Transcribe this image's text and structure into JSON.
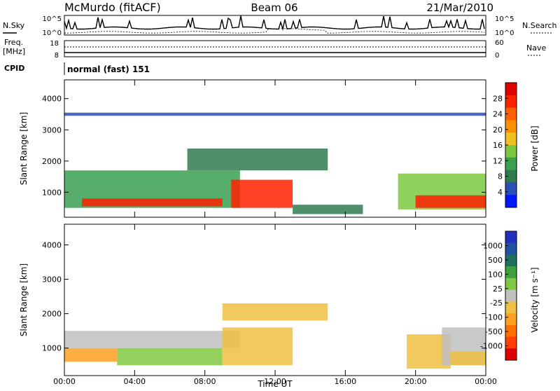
{
  "header": {
    "station": "McMurdo (fitACF)",
    "beam": "Beam 06",
    "date": "21/Mar/2010"
  },
  "strips": {
    "noise_left_label": "N.Sky",
    "noise_right_label": "N.Search",
    "noise_ticks": [
      "10^5",
      "10^0"
    ],
    "freq_label_1": "Freq.",
    "freq_label_2": "[MHz]",
    "freq_ticks": [
      "18",
      "8"
    ],
    "nave_label": "Nave",
    "nave_ticks": [
      "60",
      "0"
    ],
    "cpid_label": "CPID",
    "cpid_value": "normal (fast) 151"
  },
  "colorbars": {
    "power": {
      "label": "Power [dB]",
      "ticks": [
        "28",
        "24",
        "20",
        "16",
        "12",
        "8",
        "4"
      ],
      "colors": [
        "#0018ff",
        "#2a4fb8",
        "#2f7a4f",
        "#3aa050",
        "#7cc840",
        "#f0c020",
        "#ff9000",
        "#ff6000",
        "#ff2000",
        "#e00000"
      ]
    },
    "velocity": {
      "label": "Velocity [m s⁻¹]",
      "ticks": [
        "1000",
        "500",
        "100",
        "25",
        "-25",
        "-100",
        "-500",
        "-1000"
      ],
      "colors": [
        "#2030c0",
        "#2050a0",
        "#207060",
        "#40a040",
        "#80c840",
        "#c0c0c0",
        "#f0c040",
        "#ffa020",
        "#ff7000",
        "#ff4000",
        "#e00000"
      ]
    }
  },
  "chart_data": [
    {
      "type": "heatmap",
      "title": "",
      "ylabel": "Slant Range [km]",
      "xlabel": "",
      "ylim": [
        200,
        4600
      ],
      "x_ticks": [
        "00:00",
        "04:00",
        "08:00",
        "12:00",
        "16:00",
        "20:00",
        "00:00"
      ],
      "y_ticks": [
        "1000",
        "2000",
        "3000",
        "4000"
      ],
      "y_tick_values": [
        1000,
        2000,
        3000,
        4000
      ],
      "colorbar": "Power [dB]",
      "colorbar_range": [
        0,
        30
      ],
      "regions": [
        {
          "t0": 0.0,
          "t1": 10.0,
          "r0": 500,
          "r1": 1700,
          "value": 10
        },
        {
          "t0": 1.0,
          "t1": 9.0,
          "r0": 550,
          "r1": 800,
          "value": 26
        },
        {
          "t0": 9.5,
          "t1": 13.0,
          "r0": 500,
          "r1": 1400,
          "value": 24
        },
        {
          "t0": 19.0,
          "t1": 24.0,
          "r0": 450,
          "r1": 1600,
          "value": 14
        },
        {
          "t0": 20.0,
          "t1": 24.0,
          "r0": 500,
          "r1": 900,
          "value": 25
        },
        {
          "t0": 13.0,
          "t1": 17.0,
          "r0": 300,
          "r1": 600,
          "value": 8
        },
        {
          "t0": 7.0,
          "t1": 15.0,
          "r0": 1700,
          "r1": 2400,
          "value": 8
        },
        {
          "t0": 0.0,
          "t1": 24.0,
          "r0": 3450,
          "r1": 3550,
          "value": 5
        }
      ]
    },
    {
      "type": "heatmap",
      "title": "",
      "ylabel": "Slant Range [km]",
      "xlabel": "Time UT",
      "ylim": [
        200,
        4600
      ],
      "x_ticks": [
        "00:00",
        "04:00",
        "08:00",
        "12:00",
        "16:00",
        "20:00",
        "00:00"
      ],
      "y_ticks": [
        "1000",
        "2000",
        "3000",
        "4000"
      ],
      "y_tick_values": [
        1000,
        2000,
        3000,
        4000
      ],
      "colorbar": "Velocity [m s⁻¹]",
      "colorbar_range": [
        -1000,
        1000
      ],
      "regions": [
        {
          "t0": 0.0,
          "t1": 3.0,
          "r0": 600,
          "r1": 1000,
          "value": -300
        },
        {
          "t0": 0.0,
          "t1": 10.0,
          "r0": 1000,
          "r1": 1500,
          "value": 0
        },
        {
          "t0": 3.0,
          "t1": 9.0,
          "r0": 500,
          "r1": 1000,
          "value": 150
        },
        {
          "t0": 9.0,
          "t1": 13.0,
          "r0": 500,
          "r1": 1600,
          "value": -200
        },
        {
          "t0": 19.5,
          "t1": 22.0,
          "r0": 400,
          "r1": 1400,
          "value": -250
        },
        {
          "t0": 21.5,
          "t1": 24.0,
          "r0": 500,
          "r1": 1600,
          "value": 0
        },
        {
          "t0": 22.0,
          "t1": 24.0,
          "r0": 500,
          "r1": 900,
          "value": -150
        },
        {
          "t0": 9.0,
          "t1": 15.0,
          "r0": 1800,
          "r1": 2300,
          "value": -150
        }
      ]
    }
  ]
}
